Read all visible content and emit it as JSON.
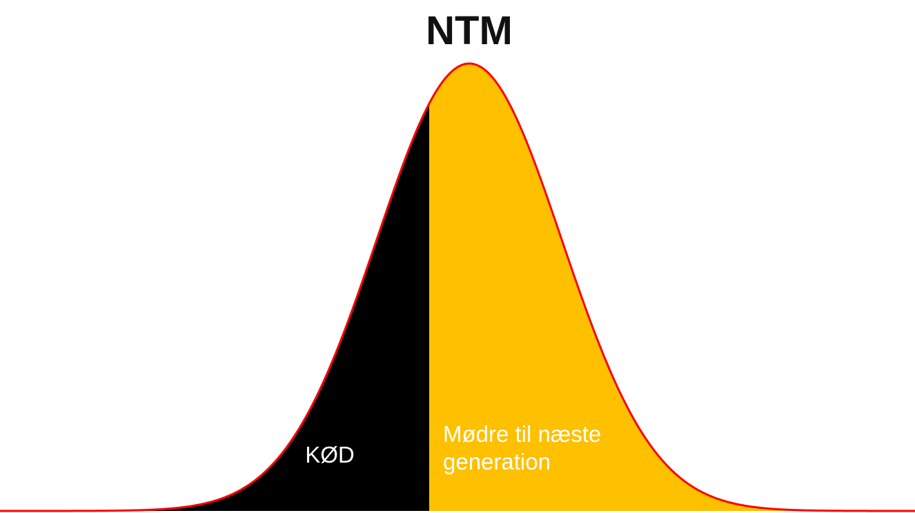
{
  "title": "NTM",
  "labels": {
    "left": "KØD",
    "right": [
      "Mødre til næste",
      "generation"
    ]
  }
}
